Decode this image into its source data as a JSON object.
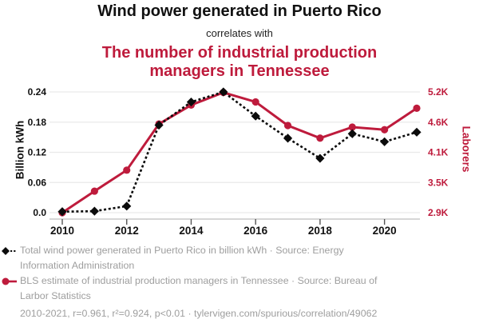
{
  "header": {
    "title": "Wind power generated in Puerto Rico",
    "subtitle": "correlates with",
    "secondary_title": "The number of industrial production managers in Tennessee"
  },
  "colors": {
    "accent_red": "#be1b3c",
    "series_black": "#0b0b0b",
    "legend_gray": "#9e9e9e",
    "grid": "#e9e9e9",
    "axis_line": "#bdbdbd",
    "tick": "#555555",
    "text": "#111111"
  },
  "chart_data": {
    "type": "line",
    "x": [
      2010,
      2011,
      2012,
      2013,
      2014,
      2015,
      2016,
      2017,
      2018,
      2019,
      2020,
      2021
    ],
    "x_tick_values": [
      2010,
      2012,
      2014,
      2016,
      2018,
      2020
    ],
    "x_tick_labels": [
      "2010",
      "2012",
      "2014",
      "2016",
      "2018",
      "2020"
    ],
    "left_axis": {
      "label": "Billion kWh",
      "tick_values": [
        0,
        0.06,
        0.12,
        0.18,
        0.24
      ],
      "tick_labels": [
        "0.0",
        "0.06",
        "0.12",
        "0.18",
        "0.24"
      ],
      "range": [
        0,
        0.24
      ]
    },
    "right_axis": {
      "label": "Laborers",
      "tick_labels": [
        "2.9K",
        "3.5K",
        "4.1K",
        "4.6K",
        "5.2K"
      ],
      "range": [
        2900,
        5200
      ]
    },
    "series": [
      {
        "name": "Total wind power generated in Puerto Rico in billion kWh",
        "axis": "left",
        "style": "dashed",
        "marker": "diamond",
        "color": "#0b0b0b",
        "values": [
          0.002,
          0.003,
          0.013,
          0.174,
          0.22,
          0.24,
          0.192,
          0.148,
          0.108,
          0.157,
          0.141,
          0.16
        ]
      },
      {
        "name": "BLS estimate of industrial production managers in Tennessee",
        "axis": "right",
        "style": "solid",
        "marker": "circle",
        "color": "#be1b3c",
        "values": [
          2900,
          3310,
          3710,
          4590,
          4950,
          5190,
          5010,
          4560,
          4320,
          4530,
          4480,
          4890
        ]
      }
    ],
    "grid": true,
    "legend_position": "bottom"
  },
  "legend": {
    "items": [
      {
        "label": "Total wind power generated in Puerto Rico in billion kWh · Source: Energy Information Administration",
        "marker": "black-diamond-dashed"
      },
      {
        "label": "BLS estimate of industrial production managers in Tennessee · Source: Bureau of Larbor Statistics",
        "marker": "red-circle-solid"
      }
    ],
    "footnote": "2010-2021, r=0.961, r²=0.924, p<0.01 · tylervigen.com/spurious/correlation/49062"
  }
}
